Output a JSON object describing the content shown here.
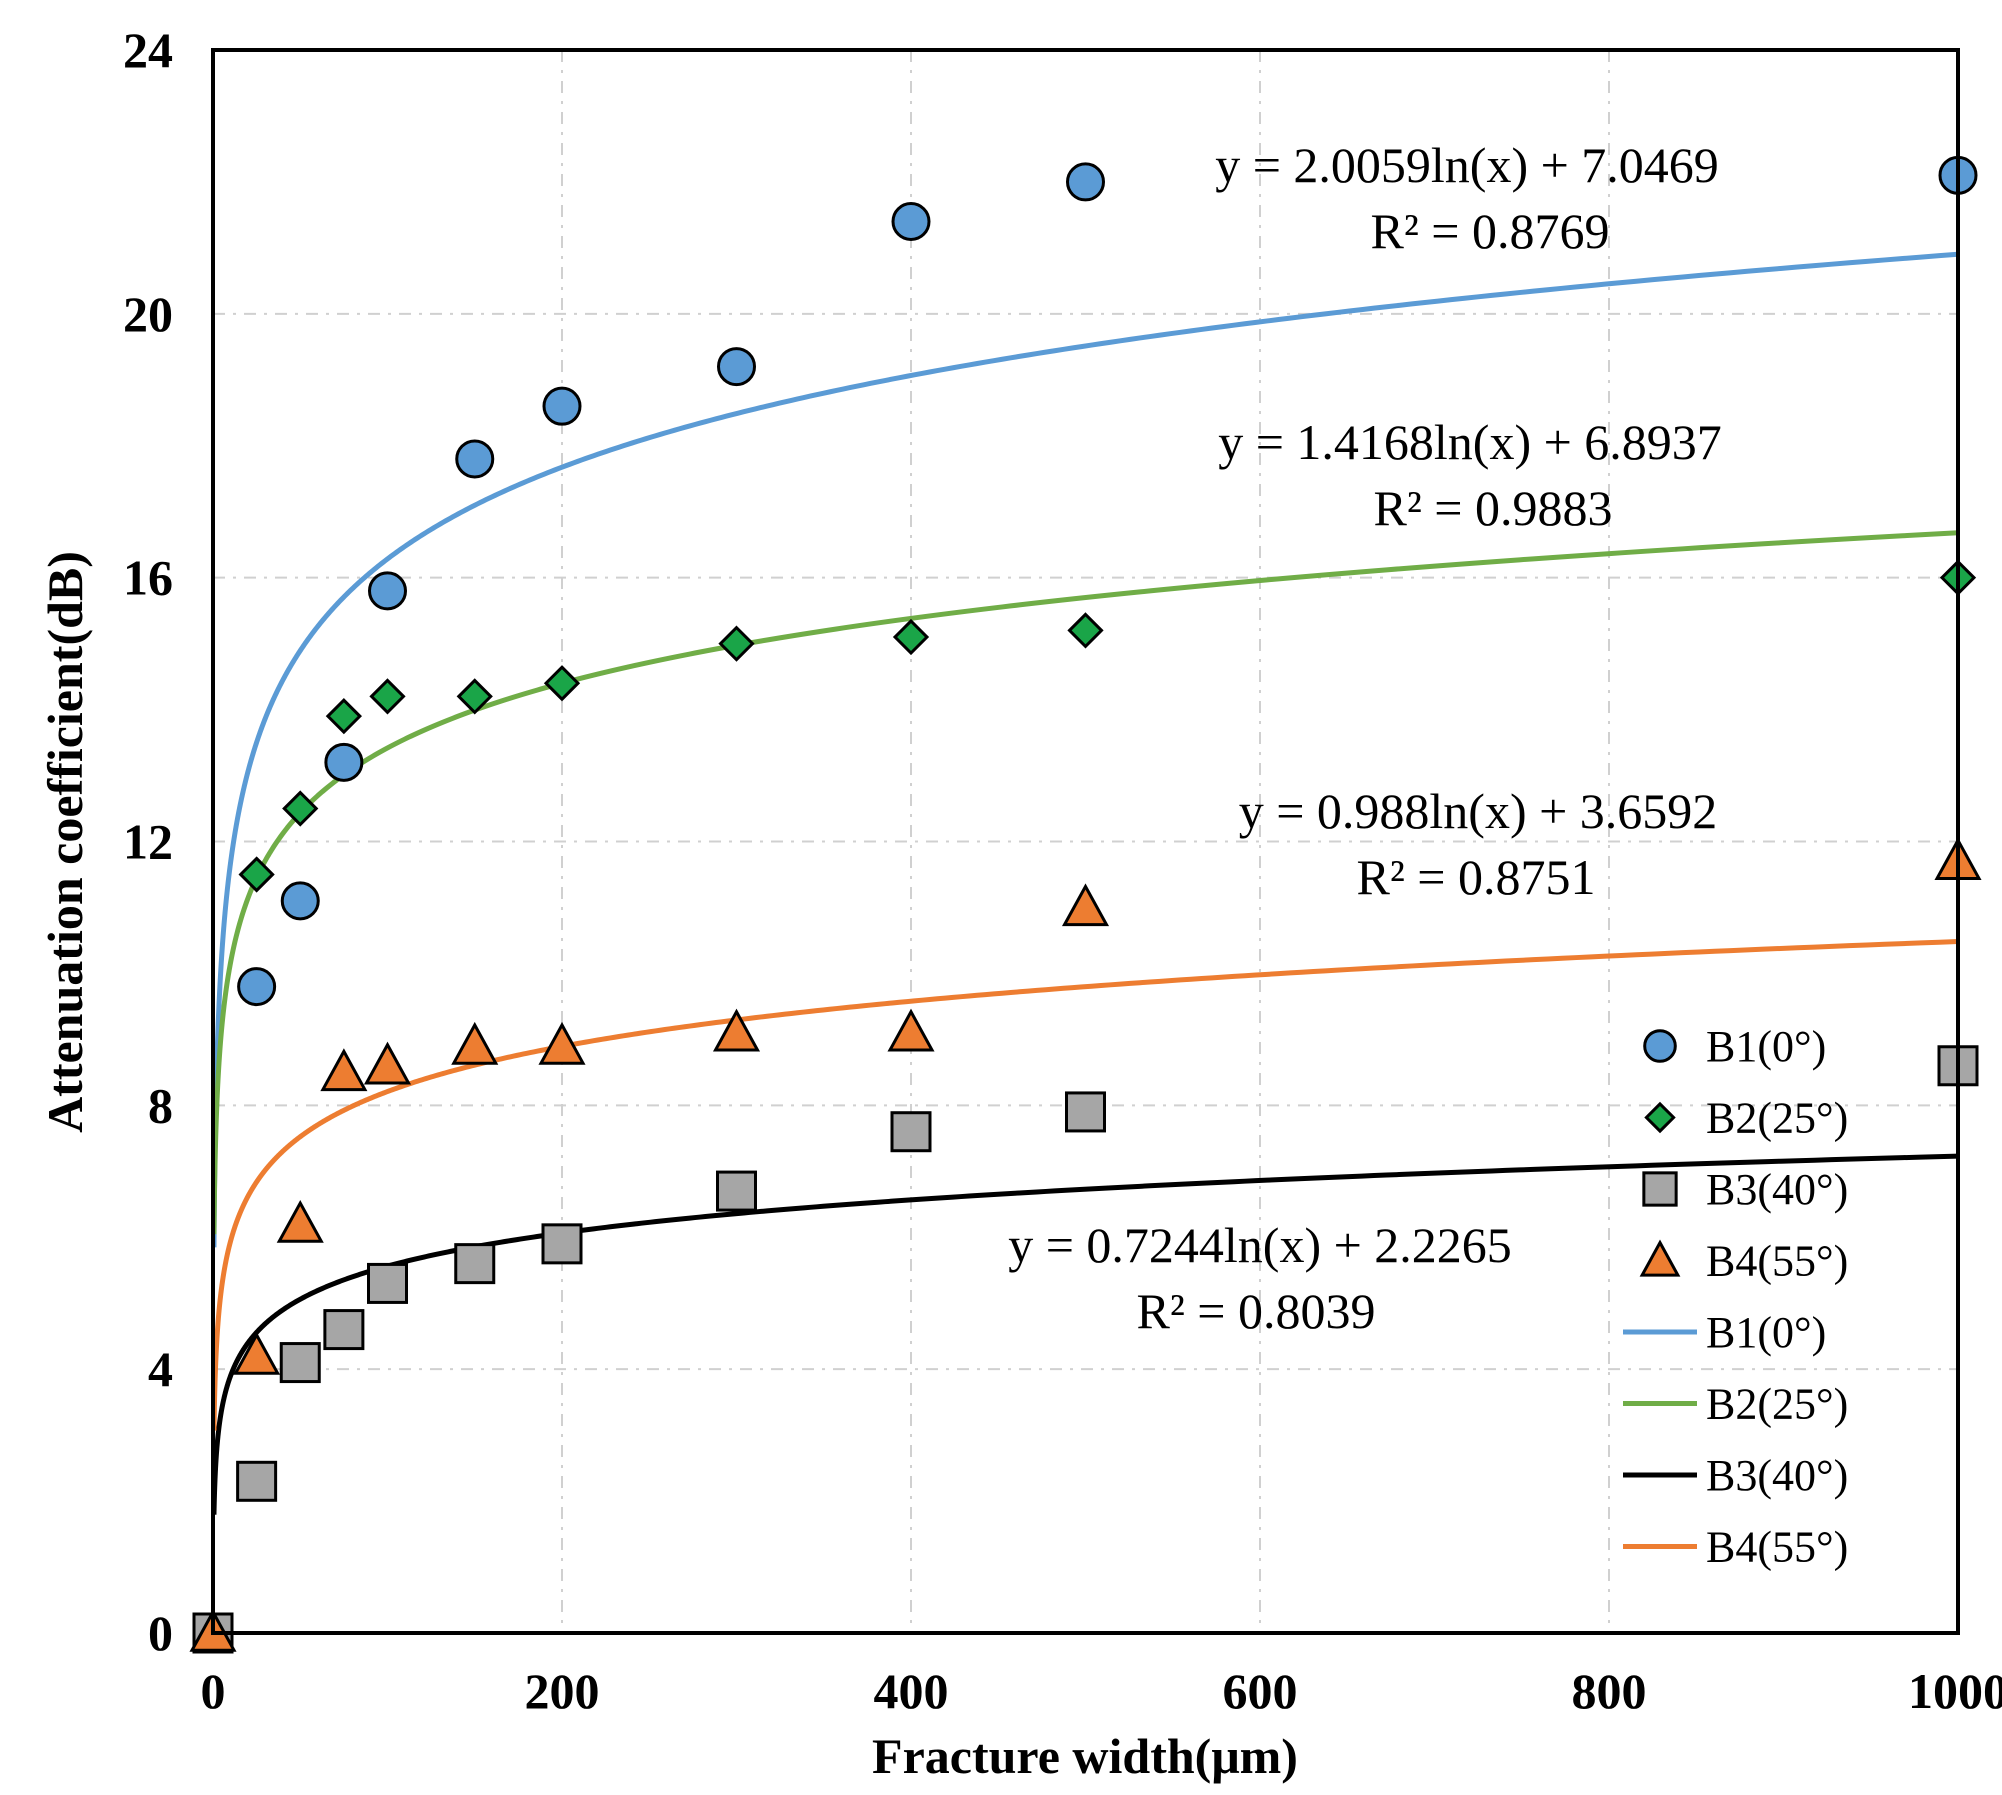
{
  "chart_data": {
    "type": "scatter",
    "xlabel": "Fracture width(μm)",
    "ylabel": "Attenuation coefficient(dB)",
    "xlim": [
      0,
      1000
    ],
    "ylim": [
      0,
      24
    ],
    "x_ticks": [
      "0",
      "200",
      "400",
      "600",
      "800",
      "1000"
    ],
    "y_ticks": [
      "0",
      "4",
      "8",
      "12",
      "16",
      "20",
      "24"
    ],
    "x_tick_values": [
      0,
      200,
      400,
      600,
      800,
      1000
    ],
    "y_tick_values": [
      0,
      4,
      8,
      12,
      16,
      20,
      24
    ],
    "grid": true,
    "legend_position": "bottom-right",
    "series": [
      {
        "name": "B1(0°)",
        "marker": "circle",
        "color": "#5b9bd5",
        "x": [
          0,
          25,
          50,
          75,
          100,
          150,
          200,
          300,
          400,
          500,
          1000
        ],
        "y": [
          0,
          9.8,
          11.1,
          13.2,
          15.8,
          17.8,
          18.6,
          19.2,
          21.4,
          22.0,
          22.1
        ]
      },
      {
        "name": "B2(25°)",
        "marker": "diamond",
        "color": "#1aa548",
        "x": [
          0,
          25,
          50,
          75,
          100,
          150,
          200,
          300,
          400,
          500,
          1000
        ],
        "y": [
          0,
          11.5,
          12.5,
          13.9,
          14.2,
          14.2,
          14.4,
          15.0,
          15.1,
          15.2,
          16.0
        ]
      },
      {
        "name": "B3(40°)",
        "marker": "square",
        "color": "#a6a6a6",
        "x": [
          0,
          25,
          50,
          75,
          100,
          150,
          200,
          300,
          400,
          500,
          1000
        ],
        "y": [
          0,
          2.3,
          4.1,
          4.6,
          5.3,
          5.6,
          5.9,
          6.7,
          7.6,
          7.9,
          8.6
        ]
      },
      {
        "name": "B4(55°)",
        "marker": "triangle",
        "color": "#ed7d31",
        "x": [
          0,
          25,
          50,
          75,
          100,
          150,
          200,
          300,
          400,
          500,
          1000
        ],
        "y": [
          0,
          4.2,
          6.2,
          8.5,
          8.6,
          8.9,
          8.9,
          9.1,
          9.1,
          11.0,
          11.7
        ]
      }
    ],
    "fits": [
      {
        "name": "B1(0°)",
        "color": "#5b9bd5",
        "a": 2.0059,
        "b": 7.0469,
        "equation": "y = 2.0059ln(x) + 7.0469",
        "r2": "R² = 0.8769"
      },
      {
        "name": "B2(25°)",
        "color": "#70ad47",
        "a": 1.4168,
        "b": 6.8937,
        "equation": "y = 1.4168ln(x) + 6.8937",
        "r2": "R² = 0.9883"
      },
      {
        "name": "B3(40°)",
        "color": "#000000",
        "a": 0.7244,
        "b": 2.2265,
        "equation": "y = 0.7244ln(x) + 2.2265",
        "r2": "R² = 0.8039"
      },
      {
        "name": "B4(55°)",
        "color": "#ed7d31",
        "a": 0.988,
        "b": 3.6592,
        "equation": "y = 0.988ln(x) + 3.6592",
        "r2": "R² = 0.8751"
      }
    ]
  }
}
